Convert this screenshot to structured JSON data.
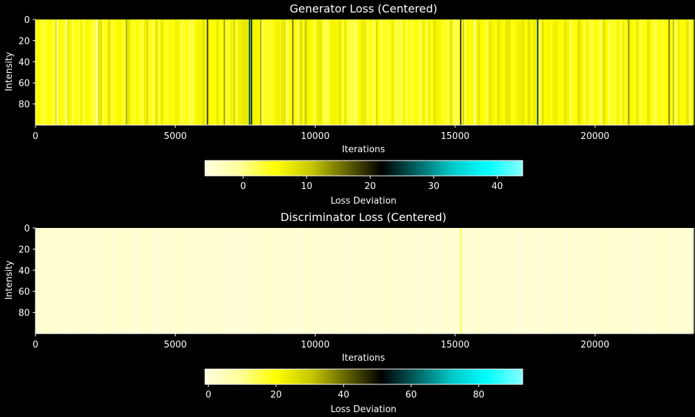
{
  "chart_data": [
    {
      "type": "heatmap",
      "title": "Generator Loss (Centered)",
      "xlabel": "Iterations",
      "ylabel": "Intensity",
      "xlim": [
        0,
        23500
      ],
      "ylim": [
        0,
        100
      ],
      "y_inverted": true,
      "x_ticks": [
        0,
        5000,
        10000,
        15000,
        20000
      ],
      "y_ticks": [
        0,
        20,
        40,
        60,
        80
      ],
      "note_data_constant_along_y": true,
      "column_base_value": 5,
      "column_peaks": [
        {
          "x": 790,
          "value": -3
        },
        {
          "x": 1100,
          "value": -2
        },
        {
          "x": 2200,
          "value": -3
        },
        {
          "x": 3250,
          "value": 12
        },
        {
          "x": 4000,
          "value": 9
        },
        {
          "x": 6150,
          "value": 19
        },
        {
          "x": 6750,
          "value": 13
        },
        {
          "x": 7100,
          "value": 10
        },
        {
          "x": 7650,
          "value": 27
        },
        {
          "x": 7720,
          "value": 24
        },
        {
          "x": 8050,
          "value": 12
        },
        {
          "x": 8800,
          "value": 8
        },
        {
          "x": 9200,
          "value": 15
        },
        {
          "x": 9650,
          "value": 11
        },
        {
          "x": 12200,
          "value": 9
        },
        {
          "x": 14000,
          "value": 1
        },
        {
          "x": 15200,
          "value": 19
        },
        {
          "x": 15300,
          "value": 10
        },
        {
          "x": 15700,
          "value": -3
        },
        {
          "x": 17950,
          "value": 25
        },
        {
          "x": 21200,
          "value": 13
        },
        {
          "x": 22650,
          "value": 15
        },
        {
          "x": 22800,
          "value": 11
        }
      ],
      "colorbar": {
        "label": "Loss Deviation",
        "range": [
          -6,
          44
        ],
        "ticks": [
          0,
          10,
          20,
          30,
          40
        ]
      }
    },
    {
      "type": "heatmap",
      "title": "Discriminator Loss (Centered)",
      "xlabel": "Iterations",
      "ylabel": "Intensity",
      "xlim": [
        0,
        23500
      ],
      "ylim": [
        0,
        100
      ],
      "y_inverted": true,
      "x_ticks": [
        0,
        5000,
        10000,
        15000,
        20000
      ],
      "y_ticks": [
        0,
        20,
        40,
        60,
        80
      ],
      "note_data_constant_along_y": true,
      "column_base_value": 1,
      "column_peaks": [
        {
          "x": 900,
          "value": 2
        },
        {
          "x": 2300,
          "value": 2
        },
        {
          "x": 3900,
          "value": 3
        },
        {
          "x": 7500,
          "value": 2
        },
        {
          "x": 9700,
          "value": 3
        },
        {
          "x": 13400,
          "value": 2
        },
        {
          "x": 15200,
          "value": 15
        },
        {
          "x": 18300,
          "value": 2
        },
        {
          "x": 21900,
          "value": 2
        }
      ],
      "colorbar": {
        "label": "Loss Deviation",
        "range": [
          -1,
          93
        ],
        "ticks": [
          0,
          20,
          40,
          60,
          80
        ]
      }
    }
  ],
  "colormap": [
    "#ffffe0",
    "#ffff99",
    "#ffff00",
    "#c8c800",
    "#646400",
    "#000000",
    "#006464",
    "#00c8c8",
    "#00ffff",
    "#88ffff"
  ]
}
